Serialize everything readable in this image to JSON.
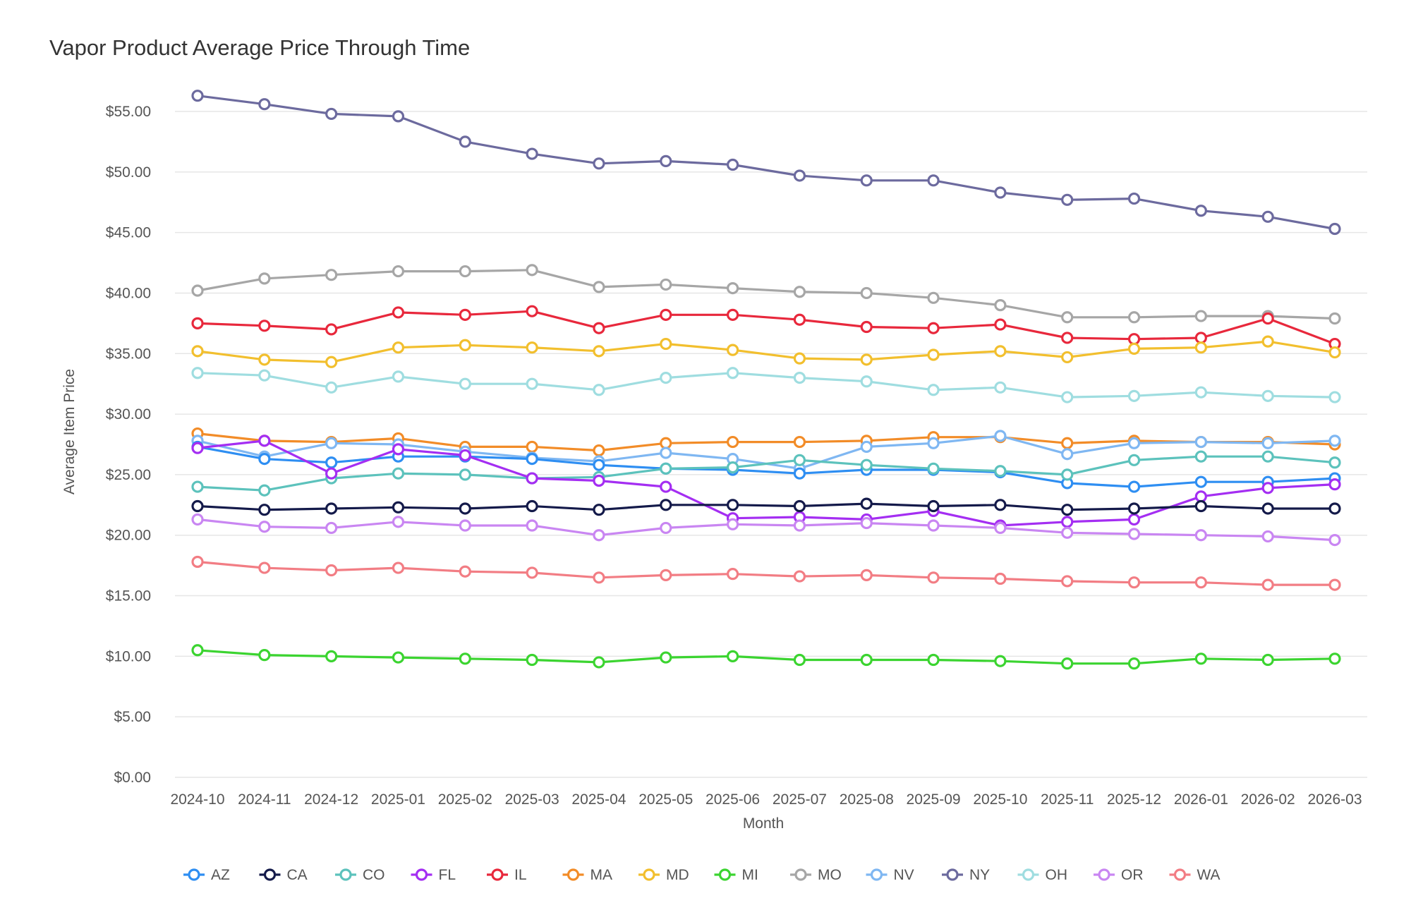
{
  "chart_data": {
    "type": "line",
    "title": "Vapor Product Average Price Through Time",
    "xlabel": "Month",
    "ylabel": "Average Item Price",
    "ylim": [
      0,
      55
    ],
    "yticks": [
      "$0.00",
      "$5.00",
      "$10.00",
      "$15.00",
      "$20.00",
      "$25.00",
      "$30.00",
      "$35.00",
      "$40.00",
      "$45.00",
      "$50.00",
      "$55.00"
    ],
    "ytick_values": [
      0,
      5,
      10,
      15,
      20,
      25,
      30,
      35,
      40,
      45,
      50,
      55
    ],
    "grid": true,
    "legend_position": "bottom",
    "categories": [
      "2024-10",
      "2024-11",
      "2024-12",
      "2025-01",
      "2025-02",
      "2025-03",
      "2025-04",
      "2025-05",
      "2025-06",
      "2025-07",
      "2025-08",
      "2025-09",
      "2025-10",
      "2025-11",
      "2025-12",
      "2026-01",
      "2026-02",
      "2026-03"
    ],
    "series": [
      {
        "name": "NY",
        "color": "#6c6a9e",
        "values": [
          56.3,
          55.6,
          54.8,
          54.6,
          52.5,
          51.5,
          50.7,
          50.9,
          50.6,
          49.7,
          49.3,
          49.3,
          48.3,
          47.7,
          47.8,
          46.8,
          46.3,
          45.3
        ]
      },
      {
        "name": "MO",
        "color": "#a6a6a6",
        "values": [
          40.2,
          41.2,
          41.5,
          41.8,
          41.8,
          41.9,
          40.5,
          40.7,
          40.4,
          40.1,
          40.0,
          39.6,
          39.0,
          38.0,
          38.0,
          38.1,
          38.1,
          37.9
        ]
      },
      {
        "name": "IL",
        "color": "#e8283c",
        "values": [
          37.5,
          37.3,
          37.0,
          38.4,
          38.2,
          38.5,
          37.1,
          38.2,
          38.2,
          37.8,
          37.2,
          37.1,
          37.4,
          36.3,
          36.2,
          36.3,
          37.9,
          35.8
        ]
      },
      {
        "name": "MD",
        "color": "#f2bf2e",
        "values": [
          35.2,
          34.5,
          34.3,
          35.5,
          35.7,
          35.5,
          35.2,
          35.8,
          35.3,
          34.6,
          34.5,
          34.9,
          35.2,
          34.7,
          35.4,
          35.5,
          36.0,
          35.1
        ]
      },
      {
        "name": "OH",
        "color": "#9fdde0",
        "values": [
          33.4,
          33.2,
          32.2,
          33.1,
          32.5,
          32.5,
          32.0,
          33.0,
          33.4,
          33.0,
          32.7,
          32.0,
          32.2,
          31.4,
          31.5,
          31.8,
          31.5,
          31.4
        ]
      },
      {
        "name": "MA",
        "color": "#f28c28",
        "values": [
          28.4,
          27.8,
          27.7,
          28.0,
          27.3,
          27.3,
          27.0,
          27.6,
          27.7,
          27.7,
          27.8,
          28.1,
          28.1,
          27.6,
          27.8,
          27.7,
          27.7,
          27.5
        ]
      },
      {
        "name": "NV",
        "color": "#7fb7f2",
        "values": [
          27.8,
          26.5,
          27.6,
          27.5,
          26.9,
          26.4,
          26.1,
          26.8,
          26.3,
          25.5,
          27.3,
          27.6,
          28.2,
          26.7,
          27.6,
          27.7,
          27.6,
          27.8
        ]
      },
      {
        "name": "AZ",
        "color": "#2e8ef2",
        "values": [
          27.3,
          26.3,
          26.0,
          26.5,
          26.5,
          26.3,
          25.8,
          25.5,
          25.4,
          25.1,
          25.4,
          25.4,
          25.2,
          24.3,
          24.0,
          24.4,
          24.4,
          24.7
        ]
      },
      {
        "name": "CO",
        "color": "#5cc2bc",
        "values": [
          24.0,
          23.7,
          24.7,
          25.1,
          25.0,
          24.7,
          24.8,
          25.5,
          25.6,
          26.2,
          25.8,
          25.5,
          25.3,
          25.0,
          26.2,
          26.5,
          26.5,
          26.0
        ]
      },
      {
        "name": "FL",
        "color": "#a42ef2",
        "values": [
          27.2,
          27.8,
          25.1,
          27.1,
          26.6,
          24.7,
          24.5,
          24.0,
          21.4,
          21.5,
          21.3,
          22.0,
          20.8,
          21.1,
          21.3,
          23.2,
          23.9,
          24.2
        ]
      },
      {
        "name": "CA",
        "color": "#141a4a",
        "values": [
          22.4,
          22.1,
          22.2,
          22.3,
          22.2,
          22.4,
          22.1,
          22.5,
          22.5,
          22.4,
          22.6,
          22.4,
          22.5,
          22.1,
          22.2,
          22.4,
          22.2,
          22.2
        ]
      },
      {
        "name": "OR",
        "color": "#c986f2",
        "values": [
          21.3,
          20.7,
          20.6,
          21.1,
          20.8,
          20.8,
          20.0,
          20.6,
          20.9,
          20.8,
          21.0,
          20.8,
          20.6,
          20.2,
          20.1,
          20.0,
          19.9,
          19.6
        ]
      },
      {
        "name": "WA",
        "color": "#f27d84",
        "values": [
          17.8,
          17.3,
          17.1,
          17.3,
          17.0,
          16.9,
          16.5,
          16.7,
          16.8,
          16.6,
          16.7,
          16.5,
          16.4,
          16.2,
          16.1,
          16.1,
          15.9,
          15.9
        ]
      },
      {
        "name": "MI",
        "color": "#3bd430",
        "values": [
          10.5,
          10.1,
          10.0,
          9.9,
          9.8,
          9.7,
          9.5,
          9.9,
          10.0,
          9.7,
          9.7,
          9.7,
          9.6,
          9.4,
          9.4,
          9.8,
          9.7,
          9.8
        ]
      }
    ],
    "legend_order": [
      "AZ",
      "CA",
      "CO",
      "FL",
      "IL",
      "MA",
      "MD",
      "MI",
      "MO",
      "NV",
      "NY",
      "OH",
      "OR",
      "WA"
    ]
  }
}
